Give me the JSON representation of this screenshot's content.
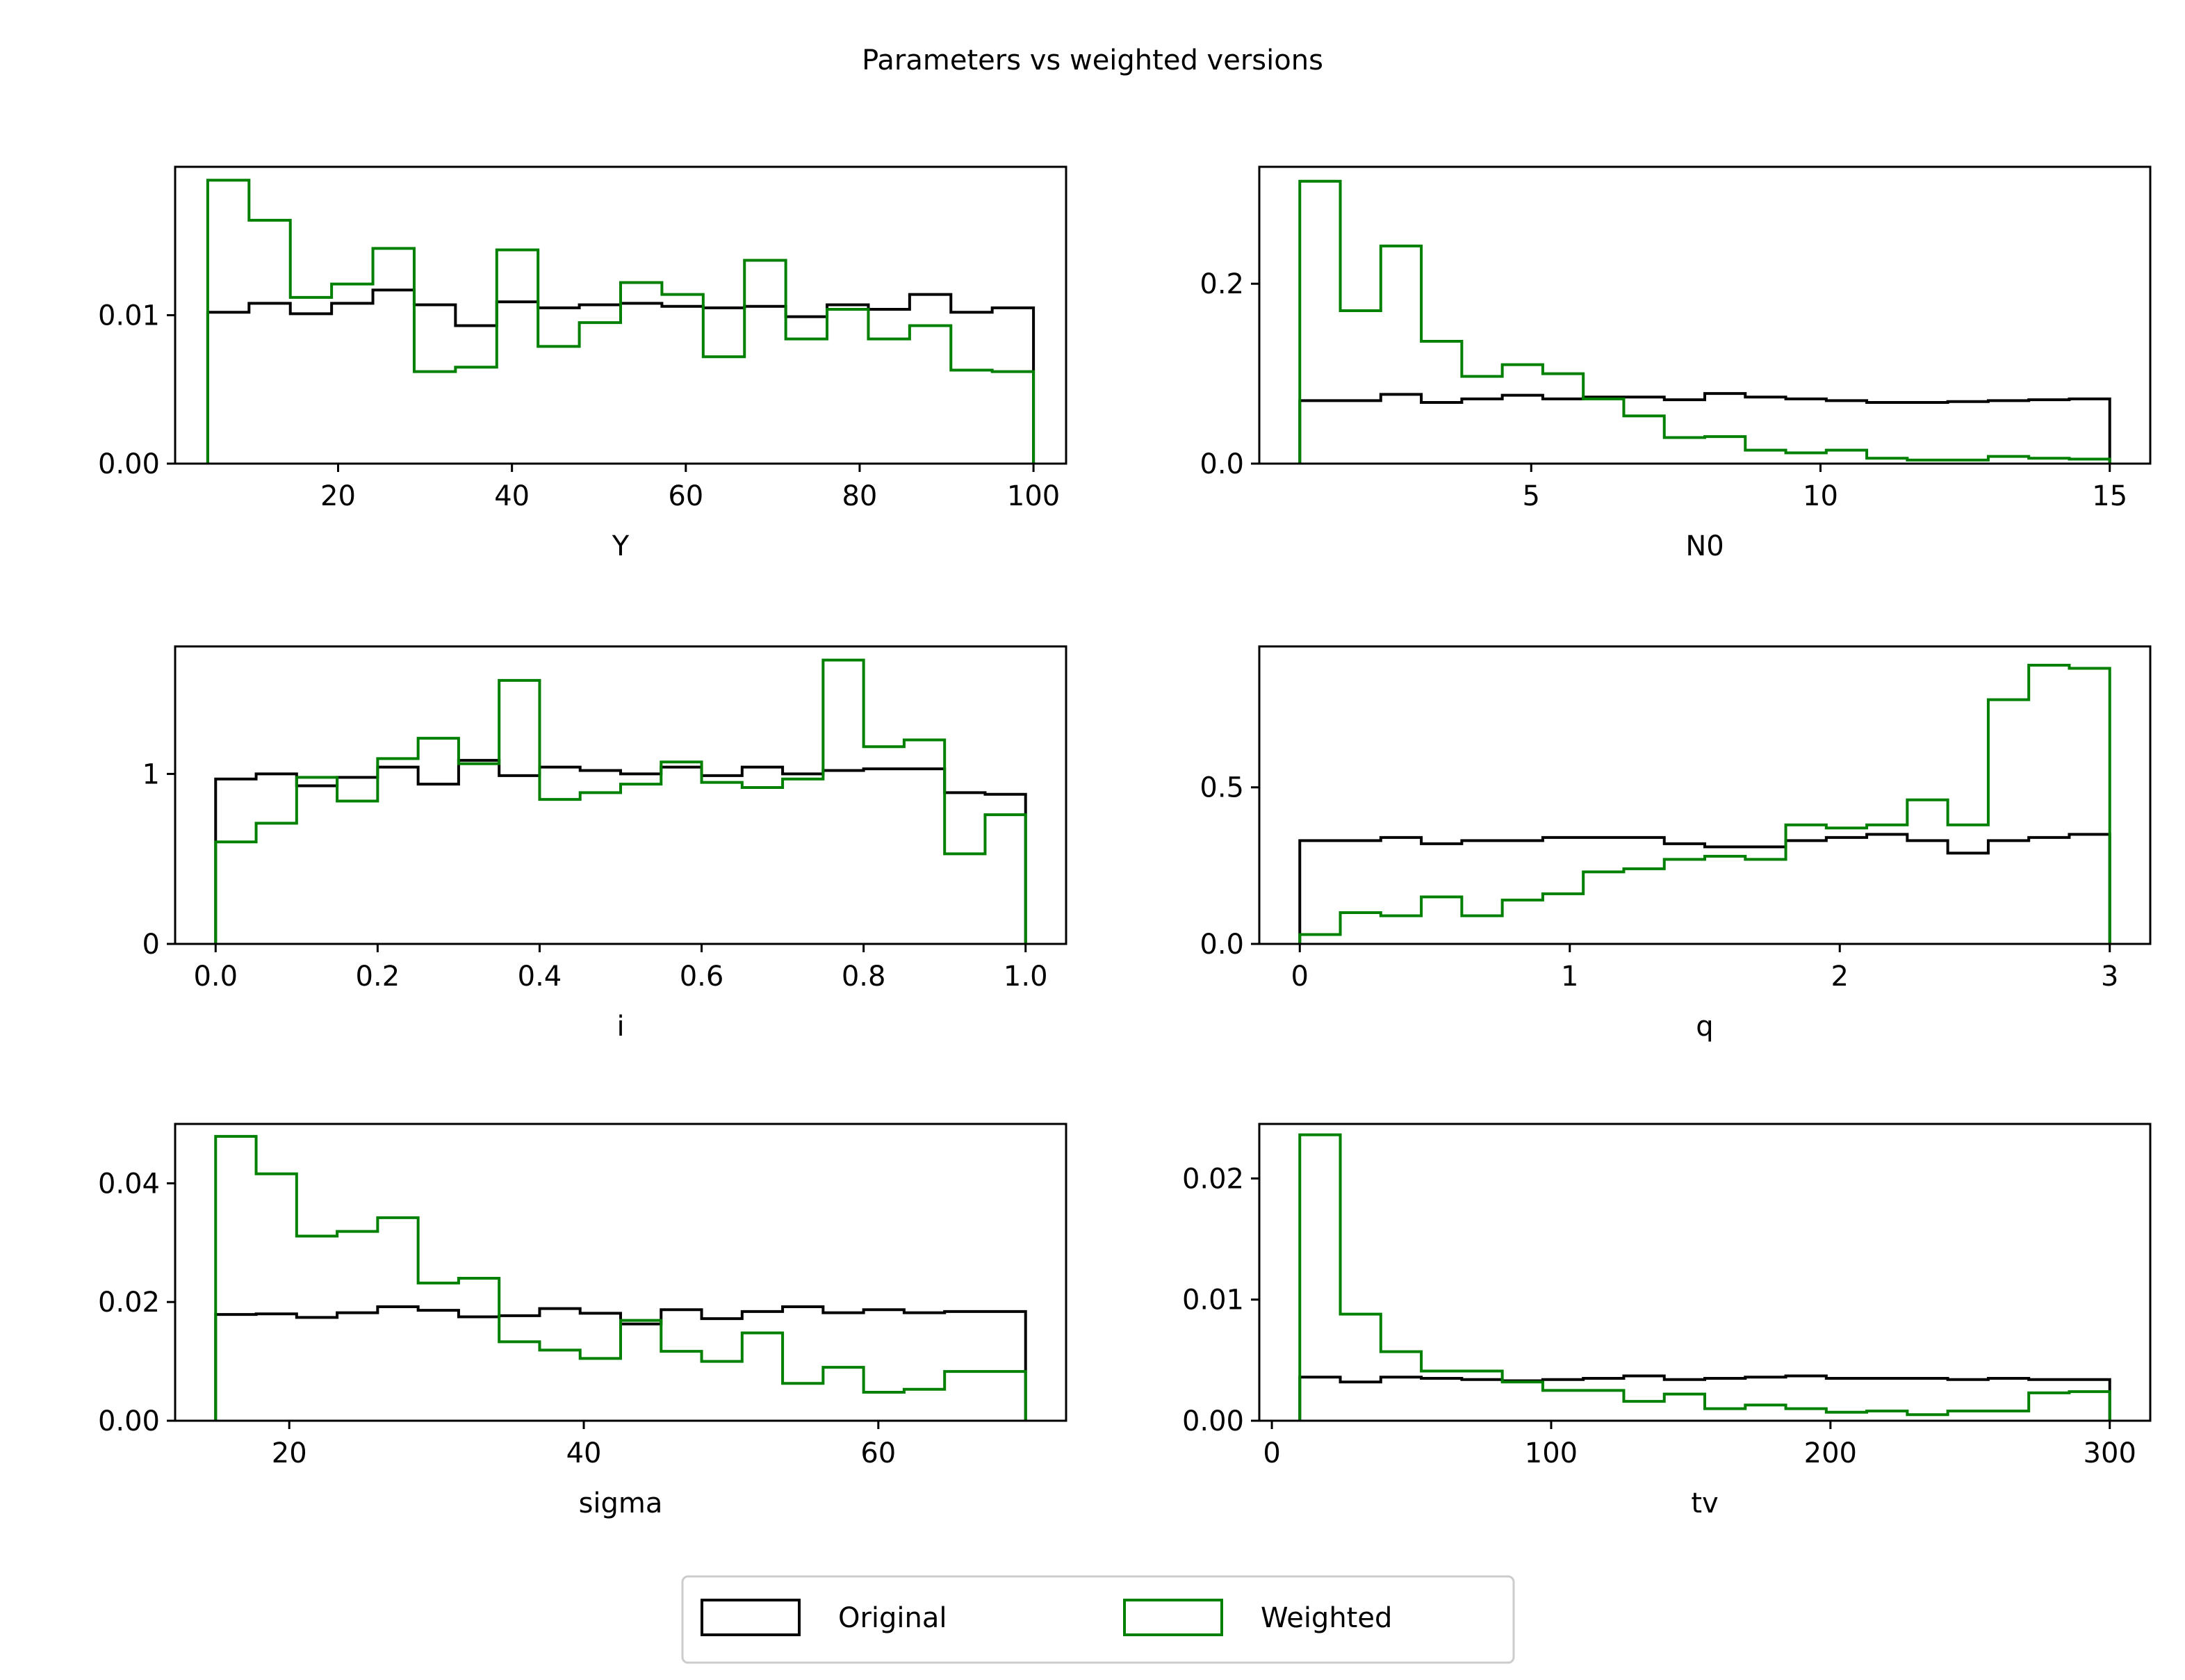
{
  "title": "Parameters vs weighted versions",
  "legend": {
    "placement": "bottom-center",
    "entries": [
      {
        "label": "Original",
        "color": "#000000"
      },
      {
        "label": "Weighted",
        "color": "#008000"
      }
    ]
  },
  "colors": {
    "original": "#000000",
    "weighted": "#008000"
  },
  "chart_data": [
    {
      "type": "step-histogram",
      "xlabel": "Y",
      "xlim": [
        1.25,
        103.75
      ],
      "ylim": [
        0,
        0.02
      ],
      "xticks": [
        20,
        40,
        60,
        80,
        100
      ],
      "xtick_labels": [
        "20",
        "40",
        "60",
        "80",
        "100"
      ],
      "yticks": [
        0,
        0.01
      ],
      "ytick_labels": [
        "0.00",
        "0.01"
      ],
      "bin_edges": [
        5,
        9.75,
        14.5,
        19.25,
        24,
        28.75,
        33.5,
        38.25,
        43,
        47.75,
        52.5,
        57.25,
        62,
        66.75,
        71.5,
        76.25,
        81,
        85.75,
        90.5,
        95.25,
        100
      ],
      "series": [
        {
          "name": "Original",
          "values": [
            0.0102,
            0.0108,
            0.0101,
            0.0108,
            0.0117,
            0.0107,
            0.0093,
            0.0109,
            0.0105,
            0.0107,
            0.0108,
            0.0106,
            0.0105,
            0.0106,
            0.0099,
            0.0107,
            0.0104,
            0.0114,
            0.0102,
            0.0105
          ]
        },
        {
          "name": "Weighted",
          "values": [
            0.0191,
            0.0164,
            0.0112,
            0.0121,
            0.0145,
            0.0062,
            0.0065,
            0.0144,
            0.0079,
            0.0095,
            0.0122,
            0.0114,
            0.0072,
            0.0137,
            0.0084,
            0.0104,
            0.0084,
            0.0093,
            0.0063,
            0.0062
          ]
        }
      ]
    },
    {
      "type": "step-histogram",
      "xlabel": "N0",
      "xlim": [
        0.3,
        15.7
      ],
      "ylim": [
        0,
        0.33
      ],
      "xticks": [
        5,
        10,
        15
      ],
      "xtick_labels": [
        "5",
        "10",
        "15"
      ],
      "yticks": [
        0,
        0.2
      ],
      "ytick_labels": [
        "0.0",
        "0.2"
      ],
      "bin_edges": [
        1,
        1.7,
        2.4,
        3.1,
        3.8,
        4.5,
        5.2,
        5.9,
        6.6,
        7.3,
        8,
        8.7,
        9.4,
        10.1,
        10.8,
        11.5,
        12.2,
        12.9,
        13.6,
        14.3,
        15
      ],
      "series": [
        {
          "name": "Original",
          "values": [
            0.07,
            0.07,
            0.077,
            0.068,
            0.072,
            0.076,
            0.072,
            0.074,
            0.074,
            0.071,
            0.078,
            0.074,
            0.072,
            0.07,
            0.068,
            0.068,
            0.069,
            0.07,
            0.071,
            0.072
          ]
        },
        {
          "name": "Weighted",
          "values": [
            0.314,
            0.17,
            0.242,
            0.136,
            0.097,
            0.11,
            0.1,
            0.072,
            0.053,
            0.029,
            0.03,
            0.015,
            0.012,
            0.015,
            0.006,
            0.004,
            0.004,
            0.008,
            0.006,
            0.005
          ]
        }
      ]
    },
    {
      "type": "step-histogram",
      "xlabel": "i",
      "xlim": [
        -0.05,
        1.05
      ],
      "ylim": [
        0,
        1.75
      ],
      "xticks": [
        0,
        0.2,
        0.4,
        0.6,
        0.8,
        1.0
      ],
      "xtick_labels": [
        "0.0",
        "0.2",
        "0.4",
        "0.6",
        "0.8",
        "1.0"
      ],
      "yticks": [
        0,
        1
      ],
      "ytick_labels": [
        "0",
        "1"
      ],
      "bin_edges": [
        0,
        0.05,
        0.1,
        0.15,
        0.2,
        0.25,
        0.3,
        0.35,
        0.4,
        0.45,
        0.5,
        0.55,
        0.6,
        0.65,
        0.7,
        0.75,
        0.8,
        0.85,
        0.9,
        0.95,
        1.0
      ],
      "series": [
        {
          "name": "Original",
          "values": [
            0.97,
            1.0,
            0.93,
            0.98,
            1.04,
            0.94,
            1.08,
            0.99,
            1.04,
            1.02,
            1.0,
            1.04,
            0.99,
            1.04,
            1.0,
            1.02,
            1.03,
            1.03,
            0.89,
            0.88
          ]
        },
        {
          "name": "Weighted",
          "values": [
            0.6,
            0.71,
            0.98,
            0.84,
            1.09,
            1.21,
            1.06,
            1.55,
            0.85,
            0.89,
            0.94,
            1.07,
            0.95,
            0.92,
            0.97,
            1.67,
            1.16,
            1.2,
            0.53,
            0.76
          ]
        }
      ]
    },
    {
      "type": "step-histogram",
      "xlabel": "q",
      "xlim": [
        -0.15,
        3.15
      ],
      "ylim": [
        0,
        0.95
      ],
      "xticks": [
        0,
        1,
        2,
        3
      ],
      "xtick_labels": [
        "0",
        "1",
        "2",
        "3"
      ],
      "yticks": [
        0,
        0.5
      ],
      "ytick_labels": [
        "0.0",
        "0.5"
      ],
      "bin_edges": [
        0,
        0.15,
        0.3,
        0.45,
        0.6,
        0.75,
        0.9,
        1.05,
        1.2,
        1.35,
        1.5,
        1.65,
        1.8,
        1.95,
        2.1,
        2.25,
        2.4,
        2.55,
        2.7,
        2.85,
        3.0
      ],
      "series": [
        {
          "name": "Original",
          "values": [
            0.33,
            0.33,
            0.34,
            0.32,
            0.33,
            0.33,
            0.34,
            0.34,
            0.34,
            0.32,
            0.31,
            0.31,
            0.33,
            0.34,
            0.35,
            0.33,
            0.29,
            0.33,
            0.34,
            0.35
          ]
        },
        {
          "name": "Weighted",
          "values": [
            0.03,
            0.1,
            0.09,
            0.15,
            0.09,
            0.14,
            0.16,
            0.23,
            0.24,
            0.27,
            0.28,
            0.27,
            0.38,
            0.37,
            0.38,
            0.46,
            0.38,
            0.78,
            0.89,
            0.88
          ]
        }
      ]
    },
    {
      "type": "step-histogram",
      "xlabel": "sigma",
      "xlim": [
        12.25,
        72.75
      ],
      "ylim": [
        0,
        0.05
      ],
      "xticks": [
        20,
        40,
        60
      ],
      "xtick_labels": [
        "20",
        "40",
        "60"
      ],
      "yticks": [
        0,
        0.02,
        0.04
      ],
      "ytick_labels": [
        "0.00",
        "0.02",
        "0.04"
      ],
      "bin_edges": [
        15,
        17.75,
        20.5,
        23.25,
        26,
        28.75,
        31.5,
        34.25,
        37,
        39.75,
        42.5,
        45.25,
        48,
        50.75,
        53.5,
        56.25,
        59,
        61.75,
        64.5,
        67.25,
        70
      ],
      "series": [
        {
          "name": "Original",
          "values": [
            0.0179,
            0.018,
            0.0174,
            0.0182,
            0.0192,
            0.0186,
            0.0175,
            0.0177,
            0.0189,
            0.0181,
            0.0163,
            0.0187,
            0.0172,
            0.0184,
            0.0192,
            0.0182,
            0.0187,
            0.0182,
            0.0184,
            0.0184
          ]
        },
        {
          "name": "Weighted",
          "values": [
            0.0479,
            0.0416,
            0.0311,
            0.0319,
            0.0342,
            0.0232,
            0.024,
            0.0133,
            0.0119,
            0.0105,
            0.0169,
            0.0117,
            0.01,
            0.0148,
            0.0063,
            0.009,
            0.0048,
            0.0053,
            0.0083,
            0.0083
          ]
        }
      ]
    },
    {
      "type": "step-histogram",
      "xlabel": "tv",
      "xlim": [
        -4.5,
        314.5
      ],
      "ylim": [
        0,
        0.0245
      ],
      "xticks": [
        0,
        100,
        200,
        300
      ],
      "xtick_labels": [
        "0",
        "100",
        "200",
        "300"
      ],
      "yticks": [
        0,
        0.01,
        0.02
      ],
      "ytick_labels": [
        "0.00",
        "0.01",
        "0.02"
      ],
      "bin_edges": [
        10,
        24.5,
        39,
        53.5,
        68,
        82.5,
        97,
        111.5,
        126,
        140.5,
        155,
        169.5,
        184,
        198.5,
        213,
        227.5,
        242,
        256.5,
        271,
        285.5,
        300
      ],
      "series": [
        {
          "name": "Original",
          "values": [
            0.0036,
            0.0032,
            0.0036,
            0.0035,
            0.0034,
            0.0033,
            0.0034,
            0.0035,
            0.0037,
            0.0034,
            0.0035,
            0.0036,
            0.0037,
            0.0035,
            0.0035,
            0.0035,
            0.0034,
            0.0035,
            0.0034,
            0.0034
          ]
        },
        {
          "name": "Weighted",
          "values": [
            0.0236,
            0.0088,
            0.0057,
            0.0041,
            0.0041,
            0.0032,
            0.0025,
            0.0025,
            0.0016,
            0.0022,
            0.001,
            0.0013,
            0.001,
            0.0007,
            0.0008,
            0.0005,
            0.0008,
            0.0008,
            0.0023,
            0.0024
          ]
        }
      ]
    }
  ]
}
